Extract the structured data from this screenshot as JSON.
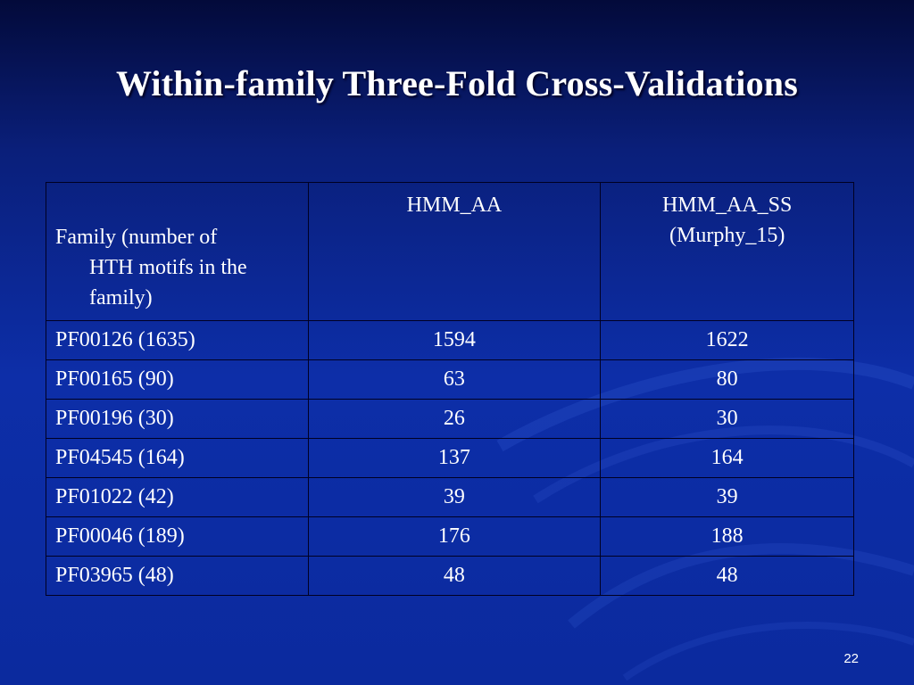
{
  "slide": {
    "title": "Within-family Three-Fold Cross-Validations",
    "page_number": "22"
  },
  "table": {
    "headers": {
      "family_line1": "Family (number of",
      "family_line2": "HTH motifs in the",
      "family_line3": "family)",
      "col2": "HMM_AA",
      "col3_line1": "HMM_AA_SS",
      "col3_line2": "(Murphy_15)"
    },
    "rows": [
      {
        "family": "PF00126 (1635)",
        "hmm_aa": "1594",
        "hmm_aa_ss": "1622"
      },
      {
        "family": "PF00165 (90)",
        "hmm_aa": "63",
        "hmm_aa_ss": "80"
      },
      {
        "family": "PF00196 (30)",
        "hmm_aa": "26",
        "hmm_aa_ss": "30"
      },
      {
        "family": "PF04545 (164)",
        "hmm_aa": "137",
        "hmm_aa_ss": "164"
      },
      {
        "family": "PF01022 (42)",
        "hmm_aa": "39",
        "hmm_aa_ss": "39"
      },
      {
        "family": "PF00046 (189)",
        "hmm_aa": "176",
        "hmm_aa_ss": "188"
      },
      {
        "family": "PF03965 (48)",
        "hmm_aa": "48",
        "hmm_aa_ss": "48"
      }
    ]
  },
  "colors": {
    "background_top": "#030a3a",
    "background_main": "#0d2ea8",
    "text": "#ffffff",
    "table_border": "#000022"
  }
}
